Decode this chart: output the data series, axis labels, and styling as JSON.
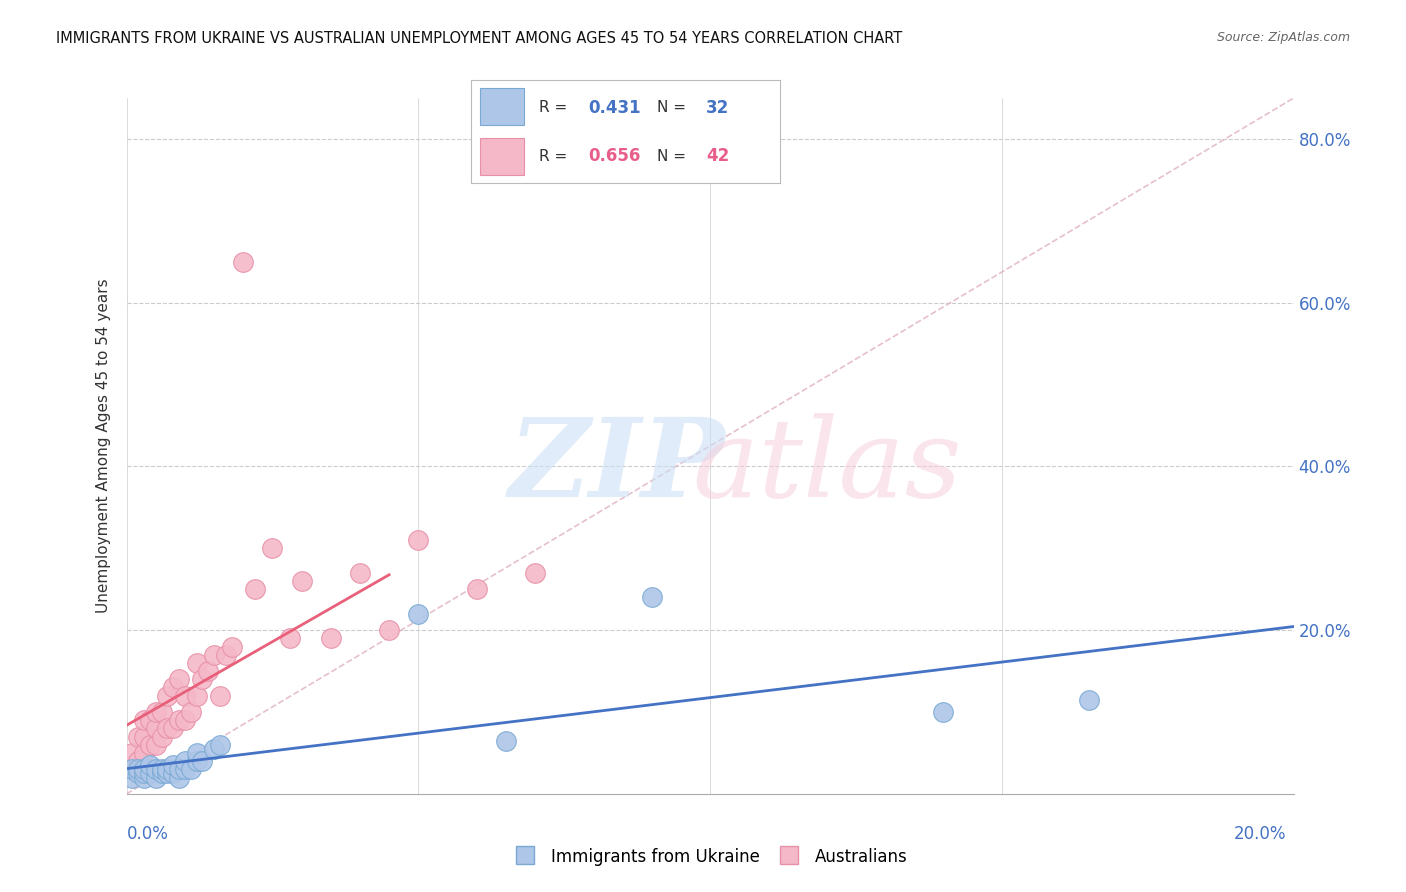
{
  "title": "IMMIGRANTS FROM UKRAINE VS AUSTRALIAN UNEMPLOYMENT AMONG AGES 45 TO 54 YEARS CORRELATION CHART",
  "source": "Source: ZipAtlas.com",
  "ylabel": "Unemployment Among Ages 45 to 54 years",
  "ukraine_color": "#aec6e8",
  "ukraine_edge_color": "#7aaad4",
  "australia_color": "#f4b8c8",
  "australia_edge_color": "#e890a8",
  "ukraine_line_color": "#4472c4",
  "australia_line_color": "#e8607a",
  "diagonal_line_color": "#e0b0c0",
  "ukraine_R": 0.431,
  "ukraine_N": 32,
  "australia_R": 0.656,
  "australia_N": 42,
  "xlim": [
    0.0,
    0.2
  ],
  "ylim": [
    0.0,
    0.85
  ],
  "grid_color": "#cccccc",
  "ukraine_points_x": [
    0.001,
    0.001,
    0.002,
    0.002,
    0.003,
    0.003,
    0.003,
    0.004,
    0.004,
    0.005,
    0.005,
    0.006,
    0.006,
    0.007,
    0.007,
    0.008,
    0.008,
    0.009,
    0.009,
    0.01,
    0.01,
    0.011,
    0.012,
    0.012,
    0.013,
    0.015,
    0.016,
    0.05,
    0.065,
    0.09,
    0.14,
    0.165
  ],
  "ukraine_points_y": [
    0.02,
    0.03,
    0.025,
    0.03,
    0.02,
    0.025,
    0.03,
    0.025,
    0.035,
    0.02,
    0.03,
    0.025,
    0.03,
    0.025,
    0.03,
    0.025,
    0.035,
    0.02,
    0.03,
    0.03,
    0.04,
    0.03,
    0.04,
    0.05,
    0.04,
    0.055,
    0.06,
    0.22,
    0.065,
    0.24,
    0.1,
    0.115
  ],
  "australia_points_x": [
    0.001,
    0.001,
    0.002,
    0.002,
    0.003,
    0.003,
    0.003,
    0.004,
    0.004,
    0.005,
    0.005,
    0.005,
    0.006,
    0.006,
    0.007,
    0.007,
    0.008,
    0.008,
    0.009,
    0.009,
    0.01,
    0.01,
    0.011,
    0.012,
    0.012,
    0.013,
    0.014,
    0.015,
    0.016,
    0.017,
    0.018,
    0.02,
    0.022,
    0.025,
    0.028,
    0.03,
    0.035,
    0.04,
    0.045,
    0.05,
    0.06,
    0.07
  ],
  "australia_points_y": [
    0.03,
    0.05,
    0.04,
    0.07,
    0.05,
    0.07,
    0.09,
    0.06,
    0.09,
    0.06,
    0.08,
    0.1,
    0.07,
    0.1,
    0.08,
    0.12,
    0.08,
    0.13,
    0.09,
    0.14,
    0.09,
    0.12,
    0.1,
    0.12,
    0.16,
    0.14,
    0.15,
    0.17,
    0.12,
    0.17,
    0.18,
    0.65,
    0.25,
    0.3,
    0.19,
    0.26,
    0.19,
    0.27,
    0.2,
    0.31,
    0.25,
    0.27
  ],
  "right_yticks": [
    0.2,
    0.4,
    0.6,
    0.8
  ],
  "right_yticklabels": [
    "20.0%",
    "40.0%",
    "60.0%",
    "80.0%"
  ]
}
